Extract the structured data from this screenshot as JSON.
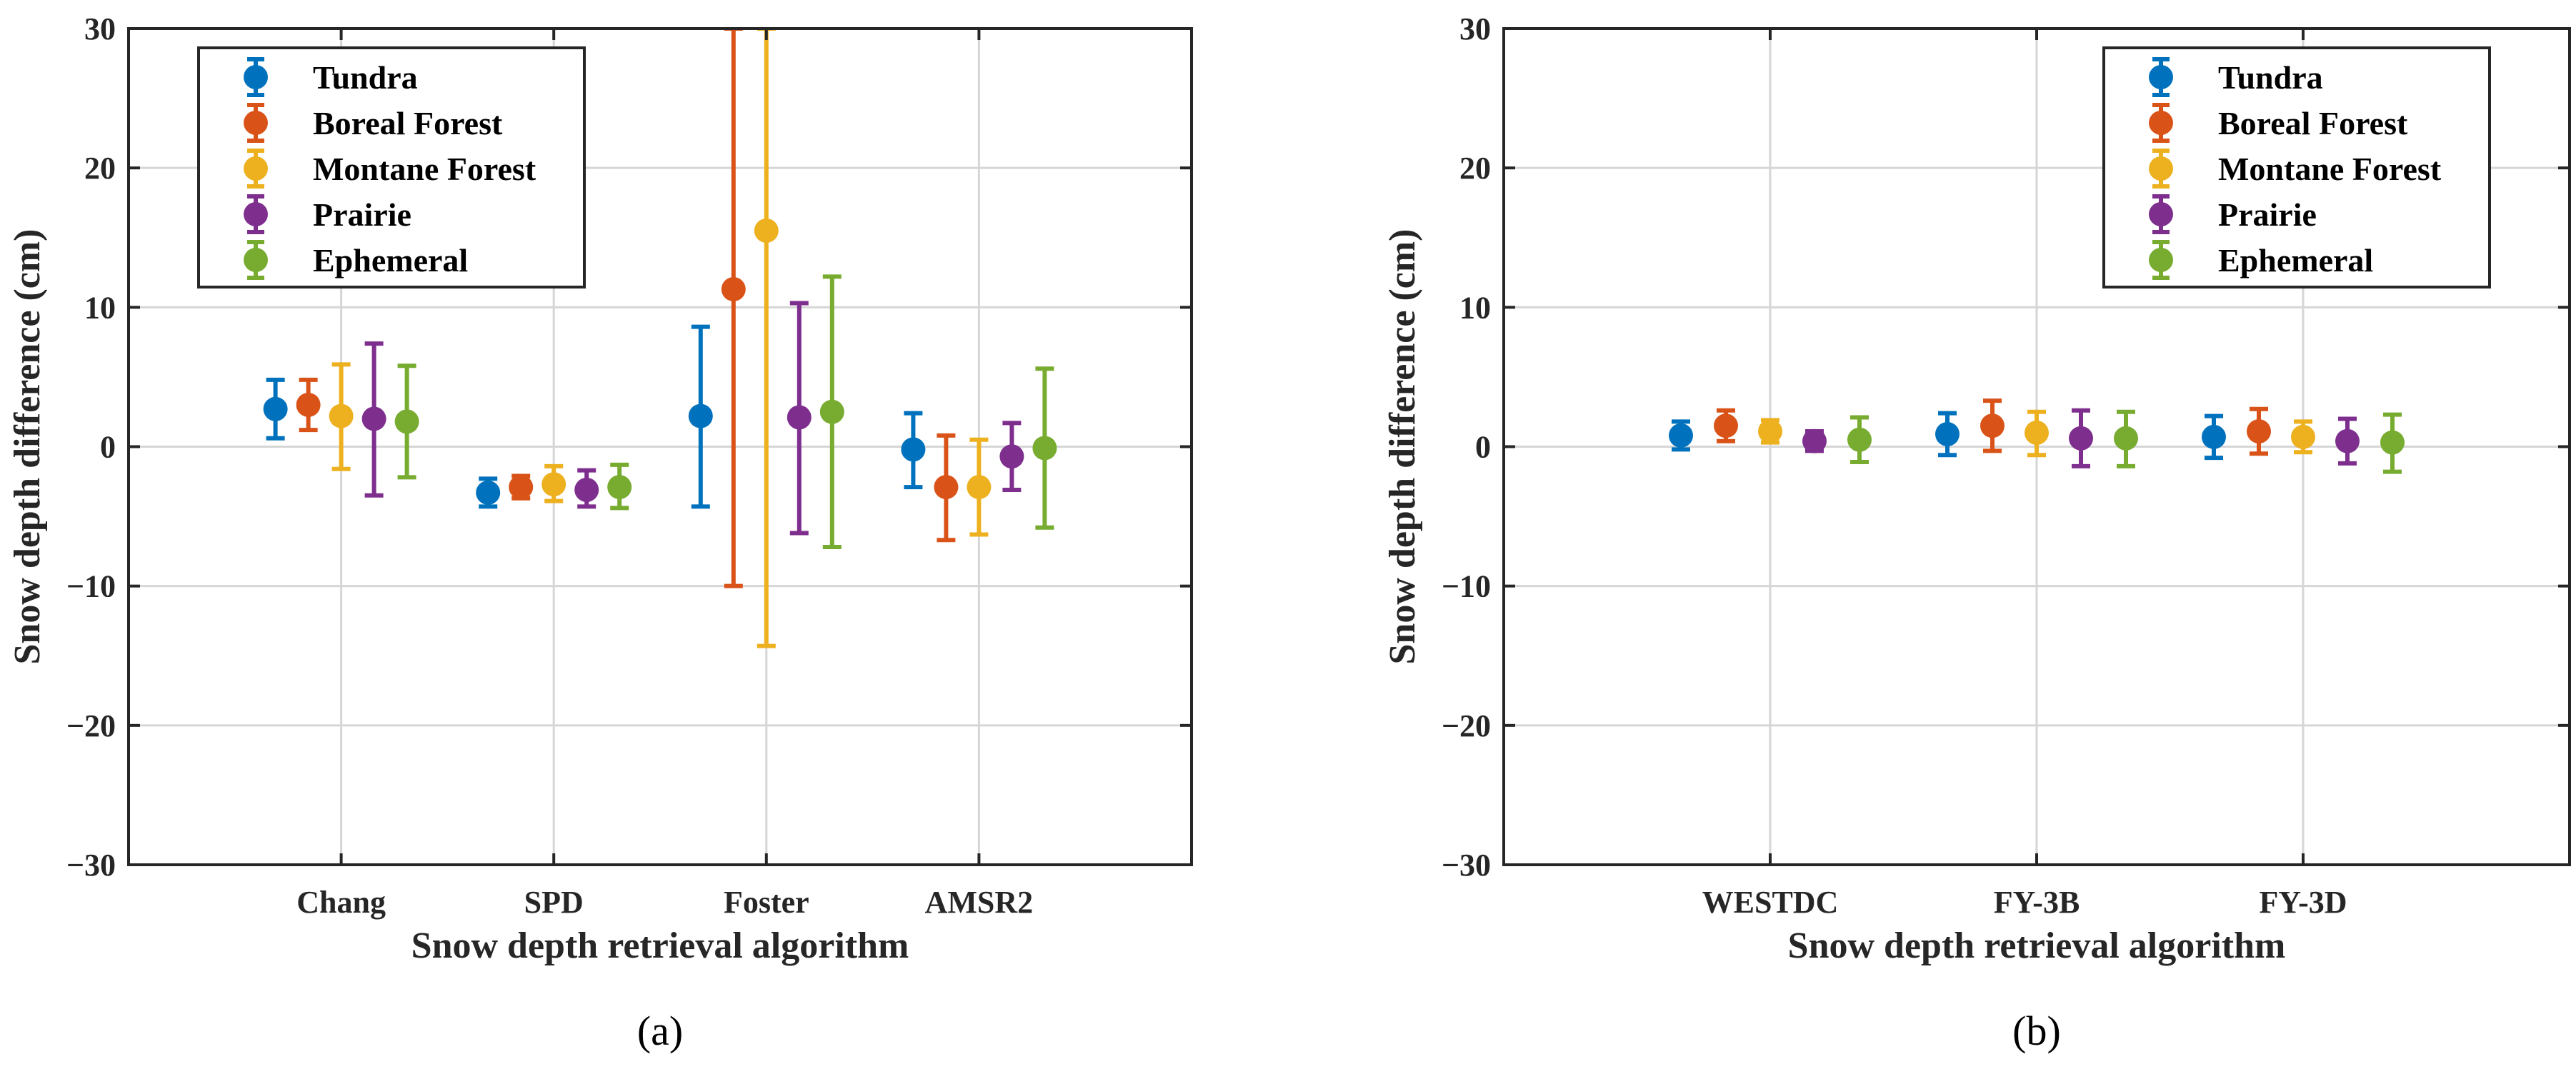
{
  "chart_data": [
    {
      "type": "scatter",
      "panel_label": "(a)",
      "xlabel": "Snow depth retrieval algorithm",
      "ylabel": "Snow depth difference (cm)",
      "categories": [
        "Chang",
        "SPD",
        "Foster",
        "AMSR2"
      ],
      "ylim": [
        -30,
        30
      ],
      "yticks": [
        30,
        20,
        10,
        0,
        -10,
        -20,
        -30
      ],
      "ytick_labels": [
        "30",
        "20",
        "10",
        "0",
        "−10",
        "−20",
        "−30"
      ],
      "grid": true,
      "legend_position": "top-left",
      "series": [
        {
          "name": "Tundra",
          "values": [
            2.7,
            -3.3,
            2.2,
            -0.2
          ],
          "lower": [
            0.6,
            -4.3,
            -4.3,
            -2.9
          ],
          "upper": [
            4.8,
            -2.3,
            8.6,
            2.4
          ]
        },
        {
          "name": "Boreal Forest",
          "values": [
            3.0,
            -2.9,
            11.3,
            -2.9
          ],
          "lower": [
            1.2,
            -3.7,
            -10.0,
            -6.7
          ],
          "upper": [
            4.8,
            -2.1,
            30.0,
            0.8
          ]
        },
        {
          "name": "Montane Forest",
          "values": [
            2.2,
            -2.7,
            15.5,
            -2.9
          ],
          "lower": [
            -1.6,
            -3.9,
            -14.3,
            -6.3
          ],
          "upper": [
            5.9,
            -1.4,
            30.0,
            0.5
          ]
        },
        {
          "name": "Prairie",
          "values": [
            2.0,
            -3.1,
            2.1,
            -0.7
          ],
          "lower": [
            -3.5,
            -4.3,
            -6.2,
            -3.1
          ],
          "upper": [
            7.4,
            -1.7,
            10.3,
            1.7
          ]
        },
        {
          "name": "Ephemeral",
          "values": [
            1.8,
            -2.9,
            2.5,
            -0.1
          ],
          "lower": [
            -2.2,
            -4.4,
            -7.2,
            -5.8
          ],
          "upper": [
            5.8,
            -1.3,
            12.2,
            5.6
          ]
        }
      ]
    },
    {
      "type": "scatter",
      "panel_label": "(b)",
      "xlabel": "Snow depth retrieval algorithm",
      "ylabel": "Snow depth difference (cm)",
      "categories": [
        "WESTDC",
        "FY-3B",
        "FY-3D"
      ],
      "ylim": [
        -30,
        30
      ],
      "yticks": [
        30,
        20,
        10,
        0,
        -10,
        -20,
        -30
      ],
      "ytick_labels": [
        "30",
        "20",
        "10",
        "0",
        "−10",
        "−20",
        "−30"
      ],
      "grid": true,
      "legend_position": "top-right",
      "series": [
        {
          "name": "Tundra",
          "values": [
            0.8,
            0.9,
            0.7
          ],
          "lower": [
            -0.2,
            -0.6,
            -0.8
          ],
          "upper": [
            1.8,
            2.4,
            2.2
          ]
        },
        {
          "name": "Boreal Forest",
          "values": [
            1.5,
            1.5,
            1.1
          ],
          "lower": [
            0.4,
            -0.3,
            -0.5
          ],
          "upper": [
            2.6,
            3.3,
            2.7
          ]
        },
        {
          "name": "Montane Forest",
          "values": [
            1.1,
            1.0,
            0.7
          ],
          "lower": [
            0.3,
            -0.6,
            -0.4
          ],
          "upper": [
            1.9,
            2.5,
            1.8
          ]
        },
        {
          "name": "Prairie",
          "values": [
            0.4,
            0.6,
            0.4
          ],
          "lower": [
            -0.3,
            -1.4,
            -1.2
          ],
          "upper": [
            1.1,
            2.6,
            2.0
          ]
        },
        {
          "name": "Ephemeral",
          "values": [
            0.5,
            0.6,
            0.3
          ],
          "lower": [
            -1.1,
            -1.4,
            -1.8
          ],
          "upper": [
            2.1,
            2.5,
            2.3
          ]
        }
      ]
    }
  ],
  "colors": {
    "Tundra": "#0072BD",
    "Boreal Forest": "#D95319",
    "Montane Forest": "#EDB120",
    "Prairie": "#7E2F8E",
    "Ephemeral": "#77AC30",
    "axis": "#262626",
    "grid": "#d6d6d6"
  }
}
